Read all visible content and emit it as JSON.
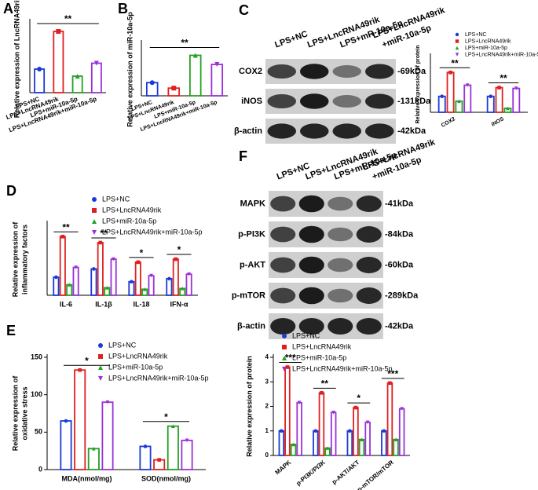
{
  "panel_labels": [
    "A",
    "B",
    "C",
    "D",
    "E",
    "F"
  ],
  "blots": [
    {
      "lanes": [
        [
          "LPS+NC"
        ],
        [
          "LPS+LncRNA49rik"
        ],
        [
          "LPS+mR-10a-5p"
        ],
        [
          "LPS+LncRNA49rik",
          "+miR-10a-5p"
        ]
      ],
      "rows": [
        {
          "name": "COX2",
          "size": "-69kDa"
        },
        {
          "name": "iNOS",
          "size": "-131kDa"
        },
        {
          "name": "β-actin",
          "size": "-42kDa"
        }
      ]
    },
    {
      "lanes": [
        [
          "LPS+NC"
        ],
        [
          "LPS+LncRNA49rik"
        ],
        [
          "LPS+mR-10a-5p"
        ],
        [
          "LPS+LncRNA49rik",
          "+miR-10a-5p"
        ]
      ],
      "rows": [
        {
          "name": "MAPK",
          "size": "-41kDa"
        },
        {
          "name": "p-PI3K",
          "size": "-84kDa"
        },
        {
          "name": "p-AKT",
          "size": "-60kDa"
        },
        {
          "name": "p-mTOR",
          "size": "-289kDa"
        },
        {
          "name": "β-actin",
          "size": "-42kDa"
        }
      ]
    }
  ],
  "chart_data": [
    {
      "type": "bar",
      "ylabel": "Relative expression of LncRNA49rik",
      "categories": [
        "LPS+NC",
        "LPS+LncRNA49rik",
        "LPS+miR-10a-5p",
        "LPS+LncRNA49rik+miR-10a-5p"
      ],
      "values": [
        2.0,
        5.2,
        1.4,
        2.5
      ],
      "colors": [
        "#1a3ad6",
        "#e02020",
        "#22a022",
        "#9b30d9"
      ],
      "ylim": [
        0,
        6
      ],
      "annotations": [
        "**"
      ]
    },
    {
      "type": "bar",
      "ylabel": "Relative expression of miR-10a-5p",
      "categories": [
        "LPS+NC",
        "LPS+LncRNA49rik",
        "LPS+miR-10a-5p",
        "LPS+LncRNA49rik+miR-10a-5p"
      ],
      "values": [
        0.65,
        0.38,
        2.0,
        1.55
      ],
      "colors": [
        "#1a3ad6",
        "#e02020",
        "#22a022",
        "#9b30d9"
      ],
      "ylim": [
        0,
        2.6
      ],
      "annotations": [
        "**"
      ]
    },
    {
      "type": "bar",
      "ylabel": "Relative expression of protein",
      "categories": [
        "COX2",
        "iNOS"
      ],
      "series": [
        {
          "name": "LPS+NC",
          "color": "#1a3ad6",
          "values": [
            1.0,
            1.0
          ]
        },
        {
          "name": "LPS+LncRNA49rik",
          "color": "#e02020",
          "values": [
            2.5,
            1.55
          ]
        },
        {
          "name": "LPS+miR-10a-5p",
          "color": "#22a022",
          "values": [
            0.7,
            0.25
          ]
        },
        {
          "name": "LPS+LncRNA49rik+miR-10a-5p",
          "color": "#9b30d9",
          "values": [
            1.7,
            1.5
          ]
        }
      ],
      "ylim": [
        0,
        3.5
      ],
      "annotations": [
        "**",
        "**"
      ]
    },
    {
      "type": "bar",
      "ylabel": [
        "Relative expression of",
        "inflammatory factors"
      ],
      "categories": [
        "IL-6",
        "IL-1β",
        "IL-18",
        "IFN-α"
      ],
      "series": [
        {
          "name": "LPS+NC",
          "color": "#1a3ad6",
          "values": [
            24,
            35,
            18,
            22
          ]
        },
        {
          "name": "LPS+LncRNA49rik",
          "color": "#e02020",
          "values": [
            78,
            70,
            44,
            48
          ]
        },
        {
          "name": "LPS+miR-10a-5p",
          "color": "#22a022",
          "values": [
            14,
            10,
            8,
            9
          ]
        },
        {
          "name": "LPS+LncRNA49rik+miR-10a-5p",
          "color": "#9b30d9",
          "values": [
            37,
            48,
            26,
            28
          ]
        }
      ],
      "ylim": [
        0,
        95
      ],
      "annotations": [
        "**",
        "**",
        "*",
        "*"
      ]
    },
    {
      "type": "bar",
      "ylabel": [
        "Relative expression of",
        "oxidative stress"
      ],
      "categories": [
        "MDA(nmol/mg)",
        "SOD(nmol/mg)"
      ],
      "series": [
        {
          "name": "LPS+NC",
          "color": "#1a3ad6",
          "values": [
            65,
            31
          ]
        },
        {
          "name": "LPS+LncRNA49rik",
          "color": "#e02020",
          "values": [
            133,
            13
          ]
        },
        {
          "name": "LPS+miR-10a-5p",
          "color": "#22a022",
          "values": [
            28,
            58
          ]
        },
        {
          "name": "LPS+LncRNA49rik+miR-10a-5p",
          "color": "#9b30d9",
          "values": [
            90,
            39
          ]
        }
      ],
      "ylim": [
        0,
        150
      ],
      "yticks": [
        0,
        50,
        100,
        150
      ],
      "annotations": [
        "*",
        "*"
      ]
    },
    {
      "type": "bar",
      "ylabel": "Relative expression of  protein",
      "categories": [
        "MAPK",
        "p-PI3K/PI3K",
        "p-AKT/AKT",
        "p-mTOR/mTOR"
      ],
      "series": [
        {
          "name": "LPS+NC",
          "color": "#1a3ad6",
          "values": [
            1.0,
            1.0,
            1.0,
            1.0
          ]
        },
        {
          "name": "LPS+LncRNA49rik",
          "color": "#e02020",
          "values": [
            3.6,
            2.55,
            1.95,
            2.95
          ]
        },
        {
          "name": "LPS+miR-10a-5p",
          "color": "#22a022",
          "values": [
            0.45,
            0.3,
            0.65,
            0.65
          ]
        },
        {
          "name": "LPS+LncRNA49rik+miR-10a-5p",
          "color": "#9b30d9",
          "values": [
            2.15,
            1.75,
            1.35,
            1.9
          ]
        }
      ],
      "ylim": [
        0,
        4
      ],
      "yticks": [
        0,
        1,
        2,
        3,
        4
      ],
      "annotations": [
        "***",
        "**",
        "*",
        "***"
      ]
    }
  ]
}
